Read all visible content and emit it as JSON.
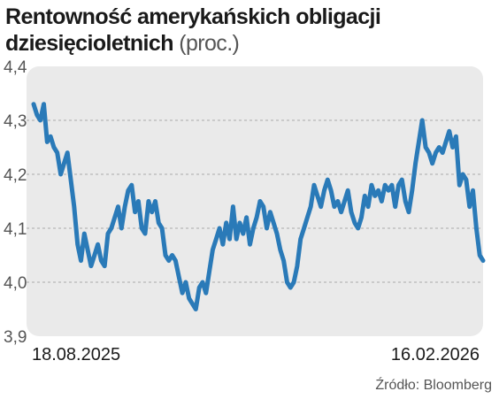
{
  "chart_data": {
    "type": "line",
    "title_line1": "Rentowność amerykańskich obligacji",
    "title_line2": "dziesięcioletnich",
    "unit": "(proc.)",
    "source": "Źródło: Bloomberg",
    "ylim": [
      3.9,
      4.4
    ],
    "yticks": [
      "4,4",
      "4,3",
      "4,2",
      "4,1",
      "4,0",
      "3,9"
    ],
    "ytick_values": [
      4.4,
      4.3,
      4.2,
      4.1,
      4.0,
      3.9
    ],
    "x_start_label": "18.08.2025",
    "x_end_label": "16.02.2026",
    "grid": true,
    "line_color": "#2a7ab8",
    "background_color": "#eaeaea",
    "series": [
      {
        "values": [
          4.33,
          4.31,
          4.3,
          4.33,
          4.26,
          4.27,
          4.25,
          4.24,
          4.2,
          4.22,
          4.24,
          4.19,
          4.14,
          4.07,
          4.04,
          4.09,
          4.06,
          4.03,
          4.05,
          4.07,
          4.04,
          4.03,
          4.09,
          4.1,
          4.12,
          4.14,
          4.1,
          4.14,
          4.17,
          4.18,
          4.13,
          4.15,
          4.1,
          4.09,
          4.15,
          4.13,
          4.15,
          4.11,
          4.1,
          4.05,
          4.04,
          4.05,
          4.04,
          4.01,
          3.98,
          4.0,
          3.97,
          3.96,
          3.95,
          3.99,
          4.0,
          3.98,
          4.02,
          4.06,
          4.08,
          4.1,
          4.07,
          4.11,
          4.08,
          4.14,
          4.08,
          4.11,
          4.09,
          4.12,
          4.07,
          4.1,
          4.12,
          4.15,
          4.14,
          4.1,
          4.13,
          4.11,
          4.09,
          4.06,
          4.04,
          4.0,
          3.99,
          4.0,
          4.03,
          4.08,
          4.1,
          4.12,
          4.14,
          4.18,
          4.16,
          4.14,
          4.17,
          4.19,
          4.17,
          4.14,
          4.15,
          4.13,
          4.15,
          4.17,
          4.13,
          4.11,
          4.1,
          4.12,
          4.16,
          4.14,
          4.18,
          4.16,
          4.17,
          4.15,
          4.18,
          4.17,
          4.18,
          4.14,
          4.18,
          4.19,
          4.15,
          4.13,
          4.17,
          4.22,
          4.26,
          4.3,
          4.25,
          4.24,
          4.22,
          4.24,
          4.25,
          4.24,
          4.26,
          4.28,
          4.25,
          4.27,
          4.18,
          4.2,
          4.19,
          4.14,
          4.17,
          4.1,
          4.05,
          4.04
        ]
      }
    ]
  }
}
